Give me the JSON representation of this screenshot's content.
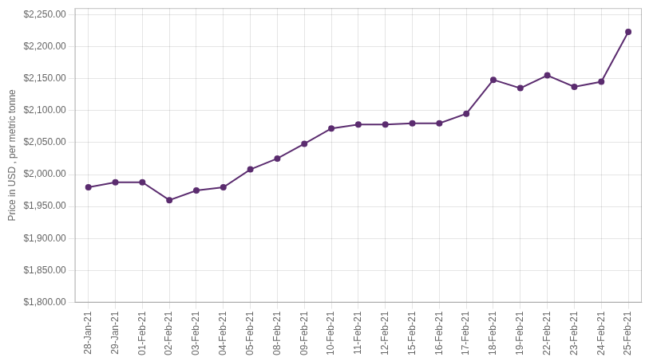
{
  "chart_data": {
    "type": "line",
    "ylabel": "Price in USD , per metric tonne",
    "categories": [
      "28-Jan-21",
      "29-Jan-21",
      "01-Feb-21",
      "02-Feb-21",
      "03-Feb-21",
      "04-Feb-21",
      "05-Feb-21",
      "08-Feb-21",
      "09-Feb-21",
      "10-Feb-21",
      "11-Feb-21",
      "12-Feb-21",
      "15-Feb-21",
      "16-Feb-21",
      "17-Feb-21",
      "18-Feb-21",
      "19-Feb-21",
      "22-Feb-21",
      "23-Feb-21",
      "24-Feb-21",
      "25-Feb-21"
    ],
    "values": [
      1980,
      1988,
      1988,
      1960,
      1975,
      1980,
      2008,
      2025,
      2048,
      2072,
      2078,
      2078,
      2080,
      2080,
      2095,
      2148,
      2135,
      2155,
      2137,
      2145,
      2223
    ],
    "color": "#5B2C6F",
    "marker": "circle",
    "ylim": [
      1800,
      2260
    ],
    "yticks": [
      {
        "value": 1800,
        "label": "$1,800.00"
      },
      {
        "value": 1850,
        "label": "$1,850.00"
      },
      {
        "value": 1900,
        "label": "$1,900.00"
      },
      {
        "value": 1950,
        "label": "$1,950.00"
      },
      {
        "value": 2000,
        "label": "$2,000.00"
      },
      {
        "value": 2050,
        "label": "$2,050.00"
      },
      {
        "value": 2100,
        "label": "$2,100.00"
      },
      {
        "value": 2150,
        "label": "$2,150.00"
      },
      {
        "value": 2200,
        "label": "$2,200.00"
      },
      {
        "value": 2250,
        "label": "$2,250.00"
      }
    ],
    "grid": true
  }
}
